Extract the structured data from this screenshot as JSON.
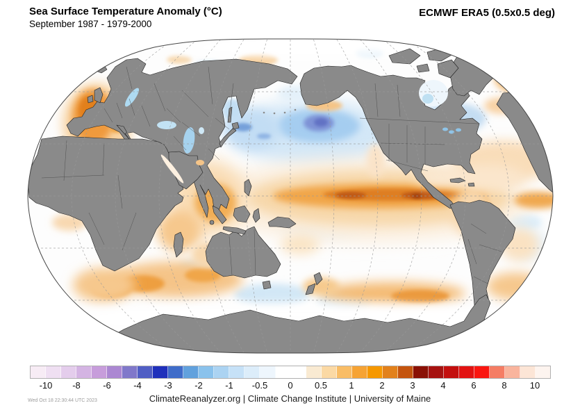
{
  "header": {
    "title": "Sea Surface Temperature Anomaly (°C)",
    "subtitle": "September 1987 - 1979-2000",
    "dataset": "ECMWF ERA5 (0.5x0.5 deg)"
  },
  "colorbar": {
    "tick_labels": [
      "-10",
      "-8",
      "-6",
      "-4",
      "-3",
      "-2",
      "-1",
      "-0.5",
      "0",
      "0.5",
      "1",
      "2",
      "3",
      "4",
      "6",
      "8",
      "10"
    ],
    "segment_colors": [
      "#f7ecf5",
      "#efdff2",
      "#e4cdec",
      "#d4b4e3",
      "#c79ddb",
      "#ab87d2",
      "#8078ca",
      "#505ec4",
      "#1f30bb",
      "#3f6cc9",
      "#61a1dd",
      "#8ac2ec",
      "#abd3f2",
      "#c6e1f7",
      "#dcedfa",
      "#eef6fd",
      "#ffffff",
      "#ffffff",
      "#f9ead2",
      "#fbd9a4",
      "#f9bd66",
      "#f6a334",
      "#f69800",
      "#e2811b",
      "#c4540e",
      "#8a1005",
      "#a61210",
      "#c30f0e",
      "#e21312",
      "#fa1610",
      "#f57d64",
      "#f9b49d",
      "#fce5d6",
      "#fdf4ef"
    ]
  },
  "map": {
    "land_color": "#8a8a8a",
    "ocean_base_color": "#fdfdfd",
    "notable_anomalies": [
      {
        "region": "equatorial Pacific (El Nino band)",
        "sign": "strong warm"
      },
      {
        "region": "central North Pacific",
        "sign": "cool"
      },
      {
        "region": "NE Atlantic near Bay of Biscay",
        "sign": "strong warm"
      },
      {
        "region": "Arabian Sea / western Indian Ocean",
        "sign": "warm"
      },
      {
        "region": "southern Indian Ocean",
        "sign": "warm"
      },
      {
        "region": "Southern Ocean south Pacific sector",
        "sign": "warm"
      },
      {
        "region": "NW Atlantic near Newfoundland",
        "sign": "cool"
      }
    ]
  },
  "footer": {
    "timestamp": "Wed Oct 18 22:30:44 UTC 2023",
    "credit": "ClimateReanalyzer.org | Climate Change Institute | University of Maine"
  }
}
